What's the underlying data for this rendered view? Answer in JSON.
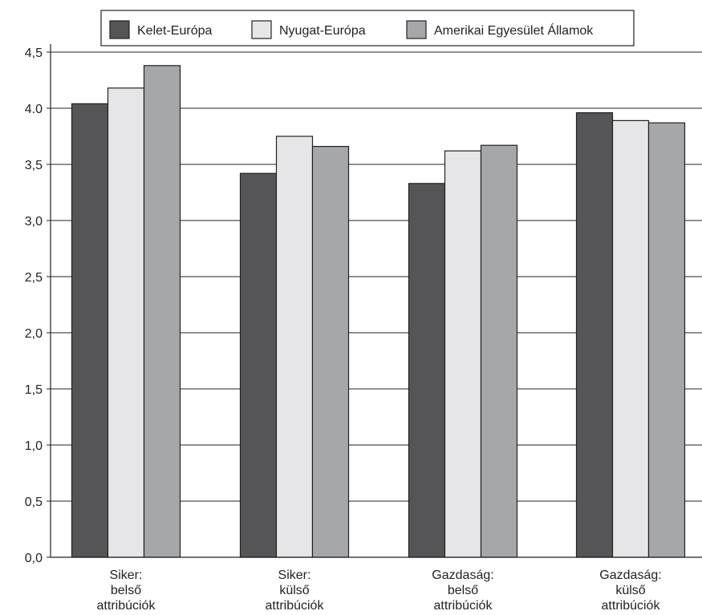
{
  "chart_data": {
    "type": "bar",
    "categories": [
      [
        "Siker:",
        "belső",
        "attribúciók"
      ],
      [
        "Siker:",
        "külső",
        "attribúciók"
      ],
      [
        "Gazdaság:",
        "belső",
        "attribúciók"
      ],
      [
        "Gazdaság:",
        "külső",
        "attribúciók"
      ]
    ],
    "series": [
      {
        "name": "Kelet-Európa",
        "color": "#555557",
        "values": [
          4.04,
          3.42,
          3.33,
          3.96
        ]
      },
      {
        "name": "Nyugat-Európa",
        "color": "#e6e6e8",
        "values": [
          4.18,
          3.75,
          3.62,
          3.89
        ]
      },
      {
        "name": "Amerikai Egyesület Államok",
        "color": "#a6a7ab",
        "values": [
          4.38,
          3.66,
          3.67,
          3.87
        ]
      }
    ],
    "ylim": [
      0,
      4.5
    ],
    "y_ticks": [
      "0,0",
      "0,5",
      "1,0",
      "1,5",
      "2,0",
      "2,5",
      "3,0",
      "3,5",
      "4.0",
      "4,5"
    ],
    "grid": true,
    "legend_position": "top-center"
  }
}
